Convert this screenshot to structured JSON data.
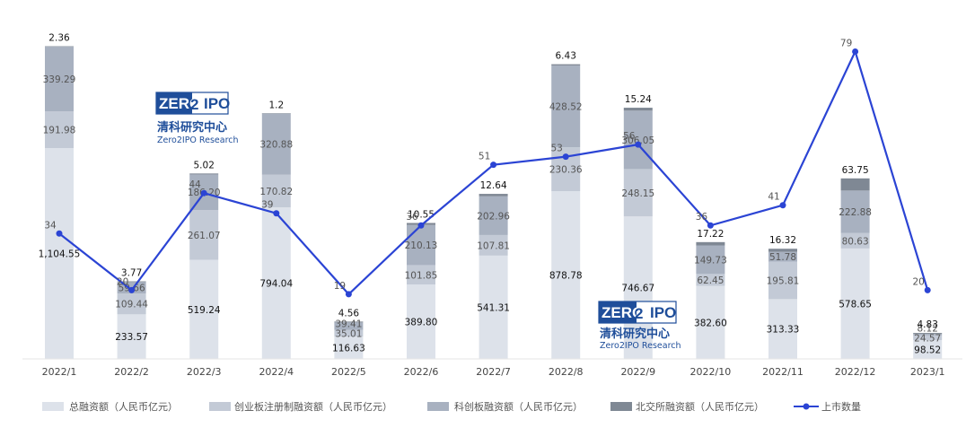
{
  "chart_data": {
    "type": "bar",
    "categories": [
      "2022/1",
      "2022/2",
      "2022/3",
      "2022/4",
      "2022/5",
      "2022/6",
      "2022/7",
      "2022/8",
      "2022/9",
      "2022/10",
      "2022/11",
      "2022/12",
      "2023/1"
    ],
    "series": [
      {
        "name": "总融资额（人民币亿元）",
        "type": "bar",
        "color": "#dde2ea",
        "values": [
          1104.55,
          233.57,
          519.24,
          794.04,
          116.63,
          389.8,
          541.31,
          878.78,
          746.67,
          382.6,
          313.33,
          578.65,
          98.52
        ],
        "labels": [
          "1,104.55",
          "233.57",
          "519.24",
          "794.04",
          "116.63",
          "389.80",
          "541.31",
          "878.78",
          "746.67",
          "382.60",
          "313.33",
          "578.65",
          "98.52"
        ]
      },
      {
        "name": "创业板注册制融资额（人民币亿元）",
        "type": "bar",
        "color": "#c3cad6",
        "values": [
          191.98,
          109.44,
          261.07,
          170.82,
          35.01,
          101.85,
          107.81,
          230.36,
          248.15,
          62.45,
          195.81,
          80.63,
          24.57
        ],
        "labels": [
          "191.98",
          "109.44",
          "261.07",
          "170.82",
          "35.01",
          "101.85",
          "107.81",
          "230.36",
          "248.15",
          "62.45",
          "195.81",
          "80.63",
          "24.57"
        ]
      },
      {
        "name": "科创板融资额（人民币亿元）",
        "type": "bar",
        "color": "#a8b1c0",
        "values": [
          339.29,
          59.66,
          186.2,
          320.88,
          39.41,
          210.13,
          202.96,
          428.52,
          306.05,
          149.73,
          51.78,
          222.88,
          8.12
        ],
        "labels": [
          "339.29",
          "59.66",
          "186.20",
          "320.88",
          "39.41",
          "210.13",
          "202.96",
          "428.52",
          "306.05",
          "149.73",
          "51.78",
          "222.88",
          "8.12"
        ]
      },
      {
        "name": "北交所融资额（人民币亿元）",
        "type": "bar",
        "color": "#7f8894",
        "values": [
          2.36,
          3.77,
          5.02,
          1.2,
          4.56,
          10.55,
          12.64,
          6.43,
          15.24,
          17.22,
          16.32,
          63.75,
          4.83
        ],
        "labels": [
          "2.36",
          "3.77",
          "5.02",
          "1.2",
          "4.56",
          "10.55",
          "12.64",
          "6.43",
          "15.24",
          "17.22",
          "16.32",
          "63.75",
          "4.83"
        ]
      },
      {
        "name": "上市数量",
        "type": "line",
        "color": "#2b44d4",
        "values": [
          34,
          20,
          44,
          39,
          19,
          36,
          51,
          53,
          56,
          36,
          41,
          79,
          20
        ]
      }
    ],
    "legend_position": "bottom-left",
    "grid": false
  },
  "watermark": {
    "brand_left": "ZERO",
    "brand_num": "2",
    "brand_right": "IPO",
    "name_cn": "清科研究中心",
    "name_en": "Zero2IPO Research"
  }
}
